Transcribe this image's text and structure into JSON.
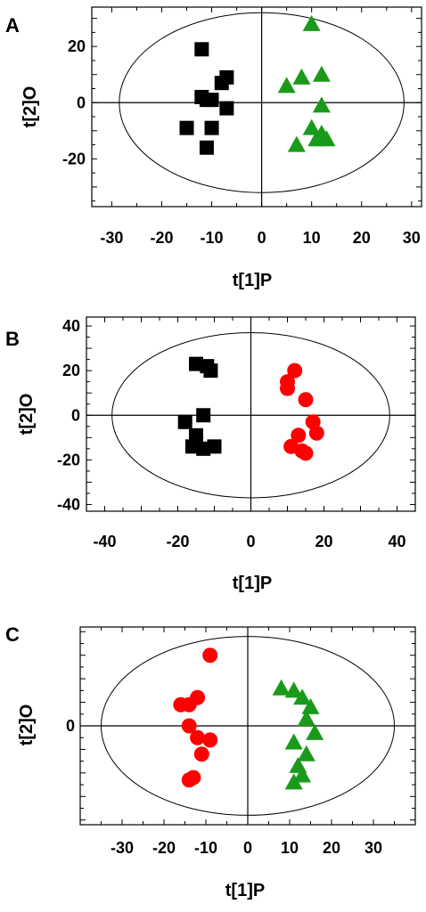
{
  "colors": {
    "black_group": "#000000",
    "green_group": "#1a9a1a",
    "red_group": "#ff0000"
  },
  "chart_data": [
    {
      "panel_label": "A",
      "type": "scatter",
      "xlabel": "t[1]P",
      "ylabel": "t[2]O",
      "xlim": [
        -34,
        32
      ],
      "ylim": [
        -37,
        34
      ],
      "xticks": [
        -30,
        -20,
        -10,
        0,
        10,
        20,
        30
      ],
      "yticks": [
        20,
        0,
        -20
      ],
      "ellipse": {
        "rx": 28.5,
        "ry": 32
      },
      "series": [
        {
          "marker": "square",
          "color": "#000000",
          "points": [
            [
              -12,
              19
            ],
            [
              -12,
              2
            ],
            [
              -11,
              1
            ],
            [
              -10,
              1
            ],
            [
              -8,
              7
            ],
            [
              -7,
              9
            ],
            [
              -7,
              -2
            ],
            [
              -15,
              -9
            ],
            [
              -10,
              -9
            ],
            [
              -11,
              -16
            ]
          ]
        },
        {
          "marker": "triangle",
          "color": "#1a9a1a",
          "points": [
            [
              10,
              28
            ],
            [
              5,
              6
            ],
            [
              8,
              9
            ],
            [
              12,
              10
            ],
            [
              12,
              -1
            ],
            [
              10,
              -9
            ],
            [
              12,
              -11
            ],
            [
              11,
              -13
            ],
            [
              13,
              -13
            ],
            [
              7,
              -15
            ]
          ]
        }
      ]
    },
    {
      "panel_label": "B",
      "type": "scatter",
      "xlabel": "t[1]P",
      "ylabel": "t[2]O",
      "xlim": [
        -45,
        45
      ],
      "ylim": [
        -43,
        44
      ],
      "xticks": [
        -40,
        -20,
        0,
        20,
        40
      ],
      "yticks": [
        40,
        20,
        0,
        -20,
        -40
      ],
      "ellipse": {
        "rx": 38,
        "ry": 37
      },
      "series": [
        {
          "marker": "square",
          "color": "#000000",
          "points": [
            [
              -15,
              23
            ],
            [
              -12,
              22
            ],
            [
              -11,
              20
            ],
            [
              -18,
              -3
            ],
            [
              -13,
              0
            ],
            [
              -15,
              -9
            ],
            [
              -16,
              -14
            ],
            [
              -13,
              -15
            ],
            [
              -10,
              -14
            ]
          ]
        },
        {
          "marker": "circle",
          "color": "#ff0000",
          "points": [
            [
              12,
              20
            ],
            [
              10,
              15
            ],
            [
              10,
              12
            ],
            [
              15,
              7
            ],
            [
              17,
              -3
            ],
            [
              18,
              -8
            ],
            [
              13,
              -9
            ],
            [
              11,
              -14
            ],
            [
              14,
              -16
            ],
            [
              15,
              -17
            ]
          ]
        }
      ]
    },
    {
      "panel_label": "C",
      "type": "scatter",
      "xlabel": "t[1]P",
      "ylabel": "t[2]O",
      "xlim": [
        -40,
        40
      ],
      "ylim": [
        -42,
        42
      ],
      "xticks": [
        -30,
        -20,
        -10,
        0,
        10,
        20,
        30
      ],
      "yticks": [
        0
      ],
      "ellipse": {
        "rx": 35,
        "ry": 38
      },
      "series": [
        {
          "marker": "circle",
          "color": "#ff0000",
          "points": [
            [
              -9,
              30
            ],
            [
              -12,
              12
            ],
            [
              -16,
              9
            ],
            [
              -14,
              9
            ],
            [
              -14,
              0
            ],
            [
              -12,
              -5
            ],
            [
              -9,
              -6
            ],
            [
              -11,
              -12
            ],
            [
              -14,
              -23
            ],
            [
              -13,
              -22
            ]
          ]
        },
        {
          "marker": "triangle",
          "color": "#1a9a1a",
          "points": [
            [
              8,
              16
            ],
            [
              11,
              15
            ],
            [
              13,
              12
            ],
            [
              15,
              8
            ],
            [
              14,
              3
            ],
            [
              16,
              -3
            ],
            [
              11,
              -7
            ],
            [
              14,
              -12
            ],
            [
              12,
              -17
            ],
            [
              13,
              -21
            ],
            [
              11,
              -24
            ]
          ]
        }
      ]
    }
  ]
}
